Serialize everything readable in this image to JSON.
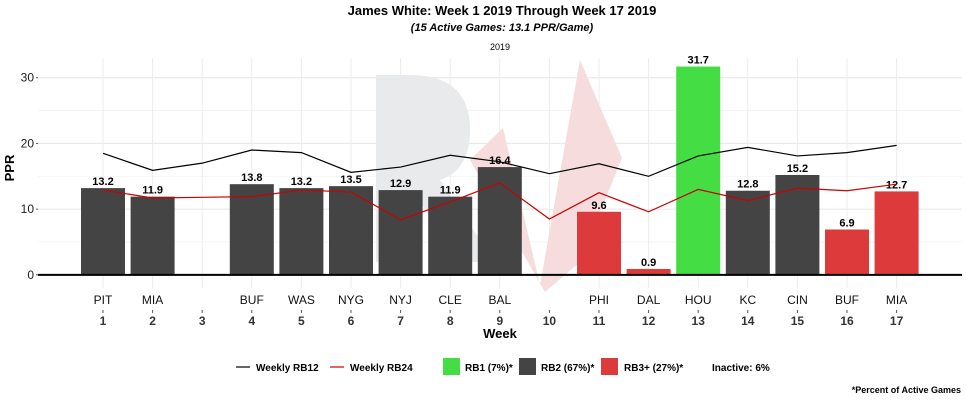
{
  "chart_data": {
    "type": "bar",
    "title": "James White: Week 1 2019 Through Week 17 2019",
    "subtitle": "(15 Active Games: 13.1 PPR/Game)",
    "facet_label": "2019",
    "xlabel": "Week",
    "ylabel": "PPR",
    "ylim": [
      -2,
      33
    ],
    "yticks": [
      0,
      10,
      20,
      30
    ],
    "grid": true,
    "legend_position": "bottom",
    "weeks": [
      "1",
      "2",
      "3",
      "4",
      "5",
      "6",
      "7",
      "8",
      "9",
      "10",
      "11",
      "12",
      "13",
      "14",
      "15",
      "16",
      "17"
    ],
    "opponents": [
      "PIT",
      "MIA",
      "",
      "BUF",
      "WAS",
      "NYG",
      "NYJ",
      "CLE",
      "BAL",
      "",
      "PHI",
      "DAL",
      "HOU",
      "KC",
      "CIN",
      "BUF",
      "MIA"
    ],
    "values": [
      13.2,
      11.9,
      null,
      13.8,
      13.2,
      13.5,
      12.9,
      11.9,
      16.4,
      null,
      9.6,
      0.9,
      31.7,
      12.8,
      15.2,
      6.9,
      12.7
    ],
    "value_labels": [
      "13.2",
      "11.9",
      "",
      "13.8",
      "13.2",
      "13.5",
      "12.9",
      "11.9",
      "16.4",
      "",
      "9.6",
      "0.9",
      "31.7",
      "12.8",
      "15.2",
      "6.9",
      "12.7"
    ],
    "tiers": [
      "RB2",
      "RB2",
      "",
      "RB2",
      "RB2",
      "RB2",
      "RB2",
      "RB2",
      "RB2",
      "",
      "RB3+",
      "RB3+",
      "RB1",
      "RB2",
      "RB2",
      "RB3+",
      "RB3+"
    ],
    "series": [
      {
        "name": "Weekly RB12",
        "color": "#000000",
        "values": [
          18.5,
          15.9,
          17.0,
          19.0,
          18.6,
          15.6,
          16.4,
          18.2,
          17.2,
          15.4,
          16.9,
          15.0,
          18.1,
          19.4,
          18.1,
          18.6,
          19.7
        ]
      },
      {
        "name": "Weekly RB24",
        "color": "#cc0000",
        "values": [
          12.9,
          11.7,
          11.8,
          11.9,
          12.9,
          12.6,
          8.4,
          11.1,
          14.0,
          8.5,
          12.5,
          9.6,
          13.0,
          11.3,
          13.2,
          12.8,
          13.8
        ]
      }
    ],
    "tier_colors": {
      "RB1": "#44dd44",
      "RB2": "#444444",
      "RB3+": "#dd3b3b"
    },
    "legend": {
      "lines": [
        "Weekly RB12",
        "Weekly RB24"
      ],
      "tiers": [
        {
          "key": "RB1",
          "label": "RB1 (7%)*"
        },
        {
          "key": "RB2",
          "label": "RB2 (67%)*"
        },
        {
          "key": "RB3+",
          "label": "RB3+ (27%)*"
        }
      ],
      "inactive": "Inactive: 6%"
    },
    "footnote": "*Percent of Active Games"
  }
}
